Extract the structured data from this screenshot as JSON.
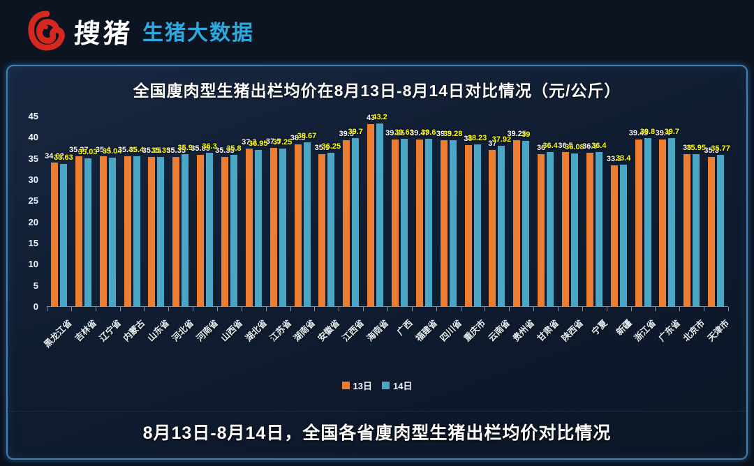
{
  "header": {
    "logo_name": "搜猪",
    "logo_tagline": "生猪大数据",
    "logo_colors": {
      "icon": "#d6281e",
      "name": "#ffffff",
      "tagline": "#2ea9e0"
    }
  },
  "chart_data": {
    "type": "bar",
    "title": "全国廋肉型生猪出栏均价在8月13日-8月14日对比情况（元/公斤）",
    "xlabel": "",
    "ylabel": "",
    "ylim": [
      0,
      45
    ],
    "yticks": [
      0,
      5,
      10,
      15,
      20,
      25,
      30,
      35,
      40,
      45
    ],
    "grid": false,
    "legend_position": "bottom",
    "categories": [
      "黑龙江省",
      "吉林省",
      "辽宁省",
      "内蒙古",
      "山东省",
      "河北省",
      "河南省",
      "山西省",
      "湖北省",
      "江苏省",
      "湖南省",
      "安徽省",
      "江西省",
      "海南省",
      "广西",
      "福建省",
      "四川省",
      "重庆市",
      "云南省",
      "贵州省",
      "甘肃省",
      "陕西省",
      "宁夏",
      "新疆",
      "浙江省",
      "广东省",
      "北京市",
      "天津市"
    ],
    "series": [
      {
        "name": "13日",
        "color": "#ec7d31",
        "label_color": "#ffffff",
        "values": [
          34.02,
          35.37,
          35.4,
          35.45,
          35.25,
          35.35,
          35.85,
          35.35,
          37.3,
          37.5,
          38.3,
          35.9,
          39.3,
          43,
          39.35,
          39.47,
          39.3,
          38,
          37,
          39.25,
          36,
          36.5,
          36.3,
          33.3,
          39.45,
          39.4,
          36,
          35.3
        ],
        "labels": [
          "34.02",
          "35.37",
          "35.4",
          "35.45",
          "35.25",
          "35.35",
          "35.85",
          "35.35",
          "37.3",
          "37.5",
          "38.3",
          "35.9",
          "39.3",
          "43",
          "39.35",
          "39.47",
          "39.3",
          "38",
          "37",
          "39.25",
          "36",
          "36.5",
          "36.3",
          "33.3",
          "39.45",
          "39.4",
          "36",
          "35.3"
        ]
      },
      {
        "name": "14日",
        "color": "#4ba5c5",
        "label_color": "#ffff00",
        "values": [
          33.63,
          35.03,
          35.04,
          35.4,
          35.35,
          35.9,
          36.3,
          35.8,
          36.95,
          37.25,
          38.67,
          36.25,
          39.7,
          43.2,
          39.63,
          39.6,
          39.28,
          38.23,
          37.92,
          39,
          36.4,
          36.08,
          36.4,
          33.4,
          39.8,
          39.7,
          35.95,
          35.77
        ],
        "labels": [
          "33.63",
          "35.03",
          "35.04",
          "35.4",
          "35.35",
          "35.9",
          "36.3",
          "35.8",
          "36.95",
          "37.25",
          "38.67",
          "36.25",
          "39.7",
          "43.2",
          "39.63",
          "39.6",
          "39.28",
          "38.23",
          "37.92",
          "39",
          "36.4",
          "36.08",
          "36.4",
          "33.4",
          "39.8",
          "39.7",
          "35.95",
          "35.77"
        ]
      }
    ]
  },
  "footer": {
    "caption": "8月13日-8月14日，全国各省廋肉型生猪出栏均价对比情况"
  }
}
